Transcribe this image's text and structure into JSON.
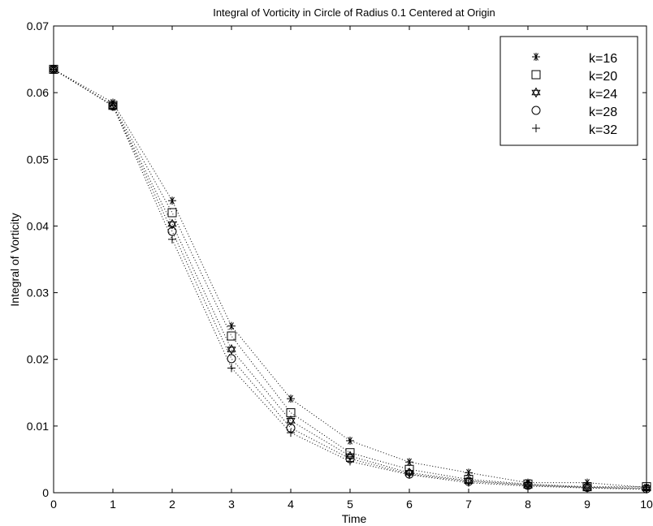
{
  "chart_data": {
    "type": "scatter",
    "title": "Integral of Vorticity in Circle of Radius 0.1 Centered at Origin",
    "xlabel": "Time",
    "ylabel": "Integral of Vorticity",
    "xlim": [
      0,
      10
    ],
    "ylim": [
      0,
      0.07
    ],
    "x_ticks": [
      0,
      1,
      2,
      3,
      4,
      5,
      6,
      7,
      8,
      9,
      10
    ],
    "x_tick_labels": [
      "0",
      "1",
      "2",
      "3",
      "4",
      "5",
      "6",
      "7",
      "8",
      "9",
      "10"
    ],
    "y_ticks": [
      0,
      0.01,
      0.02,
      0.03,
      0.04,
      0.05,
      0.06,
      0.07
    ],
    "y_tick_labels": [
      "0",
      "0.01",
      "0.02",
      "0.03",
      "0.04",
      "0.05",
      "0.06",
      "0.07"
    ],
    "grid": false,
    "legend_position": "top-right",
    "line_style": "dotted",
    "x": [
      0,
      1,
      2,
      3,
      4,
      5,
      6,
      7,
      8,
      9,
      10
    ],
    "series": [
      {
        "name": "k=16",
        "marker": "asterisk",
        "values": [
          0.0635,
          0.0585,
          0.0438,
          0.025,
          0.0141,
          0.0078,
          0.0046,
          0.003,
          0.0015,
          0.0015,
          0.0008
        ]
      },
      {
        "name": "k=20",
        "marker": "square",
        "values": [
          0.0635,
          0.0581,
          0.042,
          0.0235,
          0.012,
          0.006,
          0.0035,
          0.002,
          0.0013,
          0.0009,
          0.0009
        ]
      },
      {
        "name": "k=24",
        "marker": "hexagram",
        "values": [
          0.0635,
          0.058,
          0.0403,
          0.0215,
          0.0108,
          0.0055,
          0.003,
          0.0018,
          0.0012,
          0.0008,
          0.0007
        ]
      },
      {
        "name": "k=28",
        "marker": "circle",
        "values": [
          0.0635,
          0.058,
          0.0392,
          0.0201,
          0.0097,
          0.0051,
          0.0028,
          0.0017,
          0.0011,
          0.0008,
          0.0006
        ]
      },
      {
        "name": "k=32",
        "marker": "plus",
        "values": [
          0.0635,
          0.058,
          0.038,
          0.0187,
          0.009,
          0.0047,
          0.0027,
          0.0015,
          0.001,
          0.0007,
          0.0005
        ]
      }
    ],
    "colors": {
      "marker": "#000000",
      "line": "#000000",
      "background": "#ffffff"
    }
  }
}
